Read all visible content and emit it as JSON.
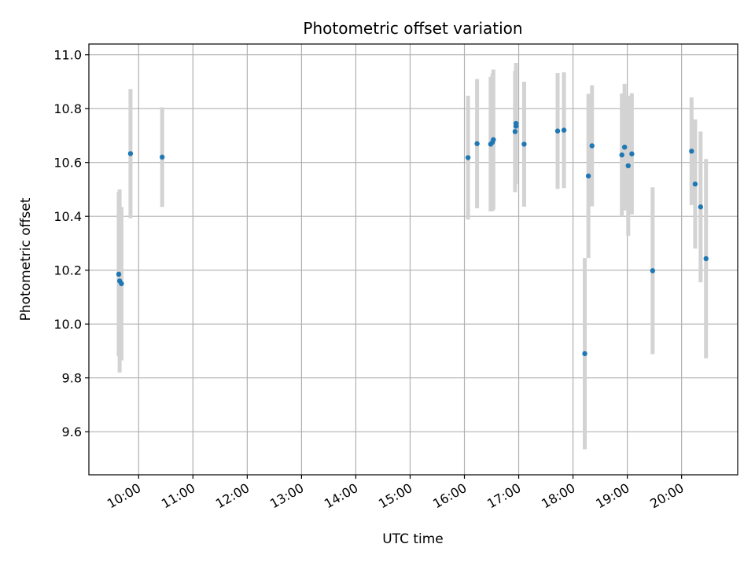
{
  "chart_data": {
    "type": "scatter",
    "title": "Photometric offset variation",
    "xlabel": "UTC time",
    "ylabel": "Photometric offset",
    "x_ticks": [
      "10:00",
      "11:00",
      "12:00",
      "13:00",
      "14:00",
      "15:00",
      "16:00",
      "17:00",
      "18:00",
      "19:00",
      "20:00"
    ],
    "y_ticks": [
      "9.6",
      "9.8",
      "10.0",
      "10.2",
      "10.4",
      "10.6",
      "10.8",
      "11.0"
    ],
    "xlim": [
      "09:05",
      "21:02"
    ],
    "ylim": [
      9.44,
      11.04
    ],
    "grid": true,
    "series": [
      {
        "marker_color": "#1f77b4",
        "errorbar_color": "#d3d3d3",
        "points": [
          {
            "x": "09:38",
            "y": 10.185,
            "err": 0.305
          },
          {
            "x": "09:39",
            "y": 10.16,
            "err": 0.34
          },
          {
            "x": "09:41",
            "y": 10.15,
            "err": 0.285
          },
          {
            "x": "09:51",
            "y": 10.633,
            "err": 0.24
          },
          {
            "x": "10:26",
            "y": 10.62,
            "err": 0.185
          },
          {
            "x": "16:04",
            "y": 10.618,
            "err": 0.23
          },
          {
            "x": "16:14",
            "y": 10.67,
            "err": 0.24
          },
          {
            "x": "16:29",
            "y": 10.668,
            "err": 0.25
          },
          {
            "x": "16:31",
            "y": 10.675,
            "err": 0.255
          },
          {
            "x": "16:32",
            "y": 10.685,
            "err": 0.26
          },
          {
            "x": "16:56",
            "y": 10.715,
            "err": 0.225
          },
          {
            "x": "16:57",
            "y": 10.735,
            "err": 0.2
          },
          {
            "x": "16:57",
            "y": 10.745,
            "err": 0.225
          },
          {
            "x": "17:06",
            "y": 10.668,
            "err": 0.232
          },
          {
            "x": "17:43",
            "y": 10.717,
            "err": 0.215
          },
          {
            "x": "17:50",
            "y": 10.72,
            "err": 0.215
          },
          {
            "x": "18:13",
            "y": 9.89,
            "err": 0.355
          },
          {
            "x": "18:17",
            "y": 10.55,
            "err": 0.305
          },
          {
            "x": "18:21",
            "y": 10.662,
            "err": 0.225
          },
          {
            "x": "18:54",
            "y": 10.628,
            "err": 0.228
          },
          {
            "x": "18:57",
            "y": 10.657,
            "err": 0.235
          },
          {
            "x": "19:01",
            "y": 10.588,
            "err": 0.26
          },
          {
            "x": "19:05",
            "y": 10.632,
            "err": 0.225
          },
          {
            "x": "19:28",
            "y": 10.198,
            "err": 0.31
          },
          {
            "x": "20:11",
            "y": 10.642,
            "err": 0.2
          },
          {
            "x": "20:15",
            "y": 10.52,
            "err": 0.24
          },
          {
            "x": "20:21",
            "y": 10.435,
            "err": 0.28
          },
          {
            "x": "20:27",
            "y": 10.243,
            "err": 0.37
          }
        ]
      }
    ]
  }
}
